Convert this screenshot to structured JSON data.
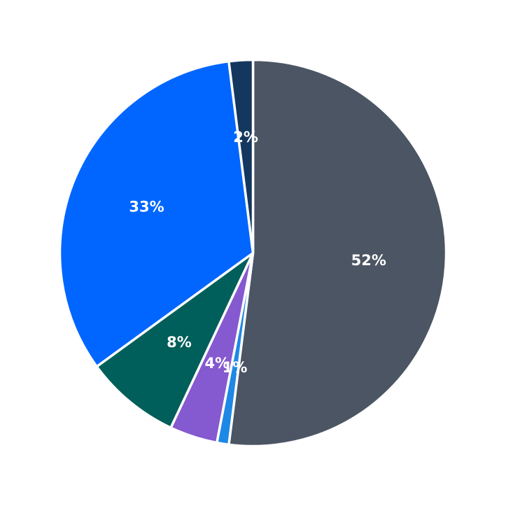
{
  "chart_data": {
    "type": "pie",
    "start_angle_deg": 90,
    "direction": "clockwise",
    "slices": [
      {
        "value": 52,
        "label": "52%",
        "color": "#4b5563"
      },
      {
        "value": 1,
        "label": "1%",
        "color": "#1e88e5"
      },
      {
        "value": 4,
        "label": "4%",
        "color": "#8559cf"
      },
      {
        "value": 8,
        "label": "8%",
        "color": "#005f5a"
      },
      {
        "value": 33,
        "label": "33%",
        "color": "#0066ff"
      },
      {
        "value": 2,
        "label": "2%",
        "color": "#14375f"
      }
    ]
  }
}
